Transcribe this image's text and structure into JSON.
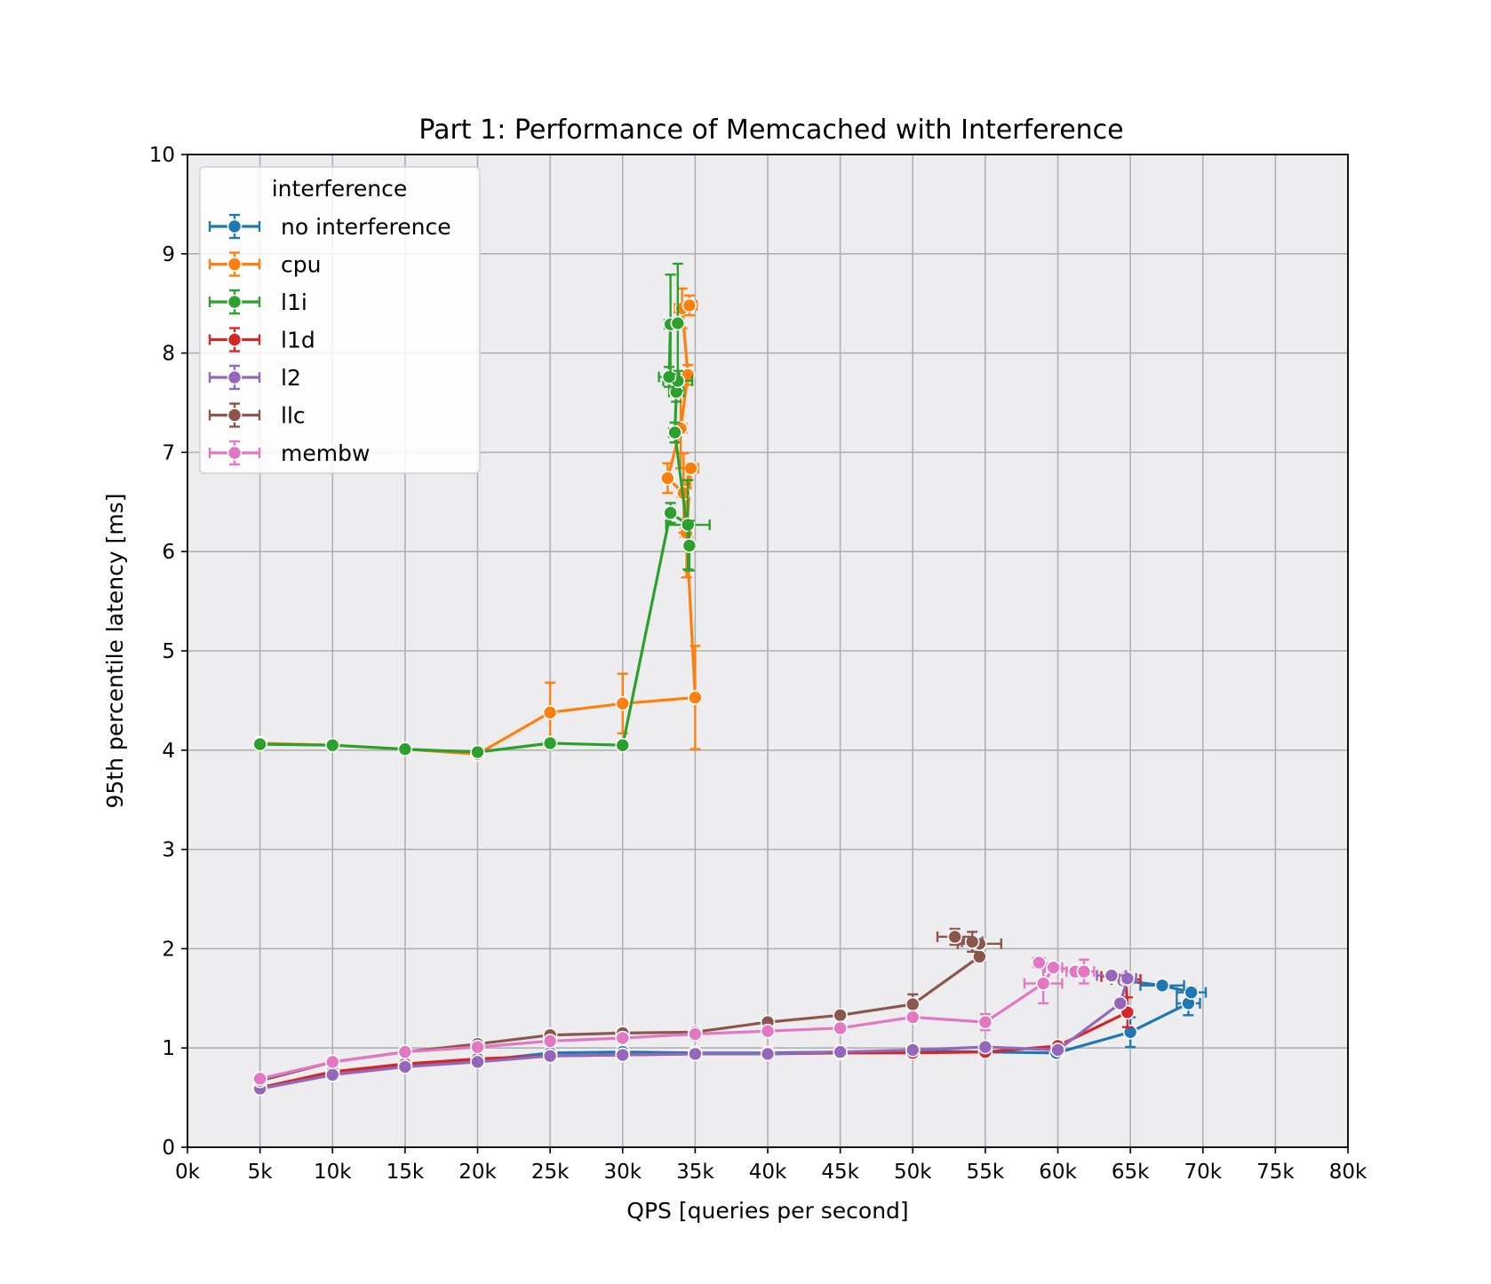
{
  "chart_data": {
    "type": "line",
    "title": "Part 1: Performance of Memcached with Interference",
    "xlabel": "QPS [queries per second]",
    "ylabel": "95th percentile latency [ms]",
    "xlim": [
      0,
      80000
    ],
    "ylim": [
      0,
      10
    ],
    "xticks": [
      0,
      5000,
      10000,
      15000,
      20000,
      25000,
      30000,
      35000,
      40000,
      45000,
      50000,
      55000,
      60000,
      65000,
      70000,
      75000,
      80000
    ],
    "xtick_labels": [
      "0k",
      "5k",
      "10k",
      "15k",
      "20k",
      "25k",
      "30k",
      "35k",
      "40k",
      "45k",
      "50k",
      "55k",
      "60k",
      "65k",
      "70k",
      "75k",
      "80k"
    ],
    "yticks": [
      0,
      1,
      2,
      3,
      4,
      5,
      6,
      7,
      8,
      9,
      10
    ],
    "ytick_labels": [
      "0",
      "1",
      "2",
      "3",
      "4",
      "5",
      "6",
      "7",
      "8",
      "9",
      "10"
    ],
    "grid": true,
    "background": "#EDEDF0",
    "legend": {
      "title": "interference",
      "placement": "top-left"
    },
    "series": [
      {
        "name": "no interference",
        "color": "#1F77B4",
        "points": [
          {
            "x": 5000,
            "y": 0.59,
            "ye": 0.03,
            "xe": 0
          },
          {
            "x": 10000,
            "y": 0.73,
            "ye": 0.03,
            "xe": 0
          },
          {
            "x": 15000,
            "y": 0.82,
            "ye": 0.03,
            "xe": 0
          },
          {
            "x": 20000,
            "y": 0.87,
            "ye": 0.03,
            "xe": 0
          },
          {
            "x": 25000,
            "y": 0.95,
            "ye": 0.03,
            "xe": 0
          },
          {
            "x": 30000,
            "y": 0.96,
            "ye": 0.03,
            "xe": 0
          },
          {
            "x": 35000,
            "y": 0.95,
            "ye": 0.03,
            "xe": 0
          },
          {
            "x": 40000,
            "y": 0.95,
            "ye": 0.03,
            "xe": 0
          },
          {
            "x": 45000,
            "y": 0.96,
            "ye": 0.03,
            "xe": 0
          },
          {
            "x": 50000,
            "y": 0.97,
            "ye": 0.03,
            "xe": 0
          },
          {
            "x": 55000,
            "y": 0.96,
            "ye": 0.03,
            "xe": 0
          },
          {
            "x": 59900,
            "y": 0.95,
            "ye": 0.03,
            "xe": 0
          },
          {
            "x": 65000,
            "y": 1.16,
            "ye": 0.15,
            "xe": 0
          },
          {
            "x": 69000,
            "y": 1.45,
            "ye": 0.12,
            "xe": 800
          },
          {
            "x": 69200,
            "y": 1.56,
            "ye": 0.05,
            "xe": 1000
          },
          {
            "x": 67200,
            "y": 1.63,
            "ye": 0.03,
            "xe": 1500
          },
          {
            "x": 64500,
            "y": 1.68,
            "ye": 0.03,
            "xe": 0
          }
        ]
      },
      {
        "name": "cpu",
        "color": "#FF7F0E",
        "points": [
          {
            "x": 5000,
            "y": 4.07,
            "ye": 0.04,
            "xe": 0
          },
          {
            "x": 10000,
            "y": 4.05,
            "ye": 0.03,
            "xe": 0
          },
          {
            "x": 15000,
            "y": 4.01,
            "ye": 0.03,
            "xe": 0
          },
          {
            "x": 20000,
            "y": 3.96,
            "ye": 0.03,
            "xe": 0
          },
          {
            "x": 25000,
            "y": 4.38,
            "ye": 0.3,
            "xe": 0
          },
          {
            "x": 30000,
            "y": 4.47,
            "ye": 0.3,
            "xe": 0
          },
          {
            "x": 35000,
            "y": 4.53,
            "ye": 0.52,
            "xe": 0
          },
          {
            "x": 34400,
            "y": 6.19,
            "ye": 0.45,
            "xe": 400
          },
          {
            "x": 34700,
            "y": 6.84,
            "ye": 0.05,
            "xe": 500
          },
          {
            "x": 34200,
            "y": 6.59,
            "ye": 0.4,
            "xe": 400
          },
          {
            "x": 33100,
            "y": 6.74,
            "ye": 0.15,
            "xe": 300
          },
          {
            "x": 34000,
            "y": 7.24,
            "ye": 0.4,
            "xe": 400
          },
          {
            "x": 34500,
            "y": 7.78,
            "ye": 0.1,
            "xe": 300
          },
          {
            "x": 34100,
            "y": 8.45,
            "ye": 0.2,
            "xe": 500
          },
          {
            "x": 34600,
            "y": 8.48,
            "ye": 0.1,
            "xe": 500
          }
        ]
      },
      {
        "name": "l1i",
        "color": "#2CA02C",
        "points": [
          {
            "x": 5000,
            "y": 4.06,
            "ye": 0.03,
            "xe": 0
          },
          {
            "x": 10000,
            "y": 4.05,
            "ye": 0.03,
            "xe": 0
          },
          {
            "x": 15000,
            "y": 4.01,
            "ye": 0.03,
            "xe": 0
          },
          {
            "x": 20000,
            "y": 3.98,
            "ye": 0.03,
            "xe": 0
          },
          {
            "x": 25000,
            "y": 4.07,
            "ye": 0.04,
            "xe": 0
          },
          {
            "x": 30000,
            "y": 4.05,
            "ye": 0.03,
            "xe": 0
          },
          {
            "x": 33300,
            "y": 6.39,
            "ye": 0.1,
            "xe": 300
          },
          {
            "x": 34500,
            "y": 6.27,
            "ye": 0.45,
            "xe": 1500
          },
          {
            "x": 34600,
            "y": 6.06,
            "ye": 0.25,
            "xe": 300
          },
          {
            "x": 33600,
            "y": 7.2,
            "ye": 0.1,
            "xe": 400
          },
          {
            "x": 33700,
            "y": 7.61,
            "ye": 0.1,
            "xe": 500
          },
          {
            "x": 33800,
            "y": 7.72,
            "ye": 0.1,
            "xe": 1000
          },
          {
            "x": 33200,
            "y": 7.76,
            "ye": 0.1,
            "xe": 700
          },
          {
            "x": 33300,
            "y": 8.29,
            "ye": 0.5,
            "xe": 400
          },
          {
            "x": 33800,
            "y": 8.3,
            "ye": 0.6,
            "xe": 300
          }
        ]
      },
      {
        "name": "l1d",
        "color": "#D62728",
        "points": [
          {
            "x": 5000,
            "y": 0.6,
            "ye": 0.03,
            "xe": 0
          },
          {
            "x": 10000,
            "y": 0.76,
            "ye": 0.03,
            "xe": 0
          },
          {
            "x": 15000,
            "y": 0.84,
            "ye": 0.03,
            "xe": 0
          },
          {
            "x": 20000,
            "y": 0.89,
            "ye": 0.03,
            "xe": 0
          },
          {
            "x": 25000,
            "y": 0.92,
            "ye": 0.03,
            "xe": 0
          },
          {
            "x": 30000,
            "y": 0.93,
            "ye": 0.03,
            "xe": 0
          },
          {
            "x": 35000,
            "y": 0.94,
            "ye": 0.03,
            "xe": 0
          },
          {
            "x": 40000,
            "y": 0.94,
            "ye": 0.03,
            "xe": 0
          },
          {
            "x": 45000,
            "y": 0.95,
            "ye": 0.03,
            "xe": 0
          },
          {
            "x": 50000,
            "y": 0.95,
            "ye": 0.03,
            "xe": 0
          },
          {
            "x": 55000,
            "y": 0.96,
            "ye": 0.03,
            "xe": 0
          },
          {
            "x": 60000,
            "y": 1.02,
            "ye": 0.03,
            "xe": 0
          },
          {
            "x": 64800,
            "y": 1.36,
            "ye": 0.15,
            "xe": 0
          },
          {
            "x": 64700,
            "y": 1.69,
            "ye": 0.05,
            "xe": 1000
          },
          {
            "x": 63800,
            "y": 1.72,
            "ye": 0.04,
            "xe": 800
          }
        ]
      },
      {
        "name": "l2",
        "color": "#9467BD",
        "points": [
          {
            "x": 5000,
            "y": 0.59,
            "ye": 0.03,
            "xe": 0
          },
          {
            "x": 10000,
            "y": 0.73,
            "ye": 0.03,
            "xe": 0
          },
          {
            "x": 15000,
            "y": 0.81,
            "ye": 0.03,
            "xe": 0
          },
          {
            "x": 20000,
            "y": 0.86,
            "ye": 0.03,
            "xe": 0
          },
          {
            "x": 25000,
            "y": 0.92,
            "ye": 0.03,
            "xe": 0
          },
          {
            "x": 30000,
            "y": 0.93,
            "ye": 0.03,
            "xe": 0
          },
          {
            "x": 35000,
            "y": 0.94,
            "ye": 0.03,
            "xe": 0
          },
          {
            "x": 40000,
            "y": 0.94,
            "ye": 0.03,
            "xe": 0
          },
          {
            "x": 45000,
            "y": 0.96,
            "ye": 0.03,
            "xe": 0
          },
          {
            "x": 50000,
            "y": 0.98,
            "ye": 0.03,
            "xe": 0
          },
          {
            "x": 55000,
            "y": 1.01,
            "ye": 0.03,
            "xe": 0
          },
          {
            "x": 60000,
            "y": 0.98,
            "ye": 0.03,
            "xe": 0
          },
          {
            "x": 64300,
            "y": 1.45,
            "ye": 0.05,
            "xe": 300
          },
          {
            "x": 64800,
            "y": 1.7,
            "ye": 0.05,
            "xe": 600
          },
          {
            "x": 63700,
            "y": 1.73,
            "ye": 0.04,
            "xe": 1000
          }
        ]
      },
      {
        "name": "llc",
        "color": "#8C564B",
        "points": [
          {
            "x": 5000,
            "y": 0.67,
            "ye": 0.03,
            "xe": 0
          },
          {
            "x": 10000,
            "y": 0.86,
            "ye": 0.03,
            "xe": 0
          },
          {
            "x": 15000,
            "y": 0.96,
            "ye": 0.03,
            "xe": 0
          },
          {
            "x": 20000,
            "y": 1.04,
            "ye": 0.03,
            "xe": 0
          },
          {
            "x": 25000,
            "y": 1.13,
            "ye": 0.03,
            "xe": 0
          },
          {
            "x": 30000,
            "y": 1.15,
            "ye": 0.03,
            "xe": 0
          },
          {
            "x": 35000,
            "y": 1.16,
            "ye": 0.03,
            "xe": 0
          },
          {
            "x": 40000,
            "y": 1.26,
            "ye": 0.03,
            "xe": 0
          },
          {
            "x": 45000,
            "y": 1.33,
            "ye": 0.03,
            "xe": 0
          },
          {
            "x": 50000,
            "y": 1.44,
            "ye": 0.1,
            "xe": 0
          },
          {
            "x": 54600,
            "y": 1.92,
            "ye": 0.05,
            "xe": 300
          },
          {
            "x": 54600,
            "y": 2.05,
            "ye": 0.04,
            "xe": 1500
          },
          {
            "x": 54100,
            "y": 2.07,
            "ye": 0.1,
            "xe": 700
          },
          {
            "x": 52900,
            "y": 2.12,
            "ye": 0.08,
            "xe": 1200
          }
        ]
      },
      {
        "name": "membw",
        "color": "#E377C2",
        "points": [
          {
            "x": 5000,
            "y": 0.69,
            "ye": 0.03,
            "xe": 0
          },
          {
            "x": 10000,
            "y": 0.86,
            "ye": 0.03,
            "xe": 0
          },
          {
            "x": 15000,
            "y": 0.96,
            "ye": 0.03,
            "xe": 0
          },
          {
            "x": 20000,
            "y": 1.01,
            "ye": 0.03,
            "xe": 0
          },
          {
            "x": 25000,
            "y": 1.07,
            "ye": 0.03,
            "xe": 0
          },
          {
            "x": 30000,
            "y": 1.1,
            "ye": 0.03,
            "xe": 0
          },
          {
            "x": 35000,
            "y": 1.14,
            "ye": 0.05,
            "xe": 0
          },
          {
            "x": 40000,
            "y": 1.17,
            "ye": 0.03,
            "xe": 0
          },
          {
            "x": 45000,
            "y": 1.2,
            "ye": 0.03,
            "xe": 0
          },
          {
            "x": 50000,
            "y": 1.31,
            "ye": 0.03,
            "xe": 0
          },
          {
            "x": 55000,
            "y": 1.26,
            "ye": 0.08,
            "xe": 0
          },
          {
            "x": 59000,
            "y": 1.65,
            "ye": 0.2,
            "xe": 1300
          },
          {
            "x": 59700,
            "y": 1.81,
            "ye": 0.05,
            "xe": 600
          },
          {
            "x": 58700,
            "y": 1.86,
            "ye": 0.05,
            "xe": 400
          },
          {
            "x": 61200,
            "y": 1.77,
            "ye": 0.05,
            "xe": 600
          },
          {
            "x": 61800,
            "y": 1.77,
            "ye": 0.12,
            "xe": 700
          }
        ]
      }
    ]
  }
}
